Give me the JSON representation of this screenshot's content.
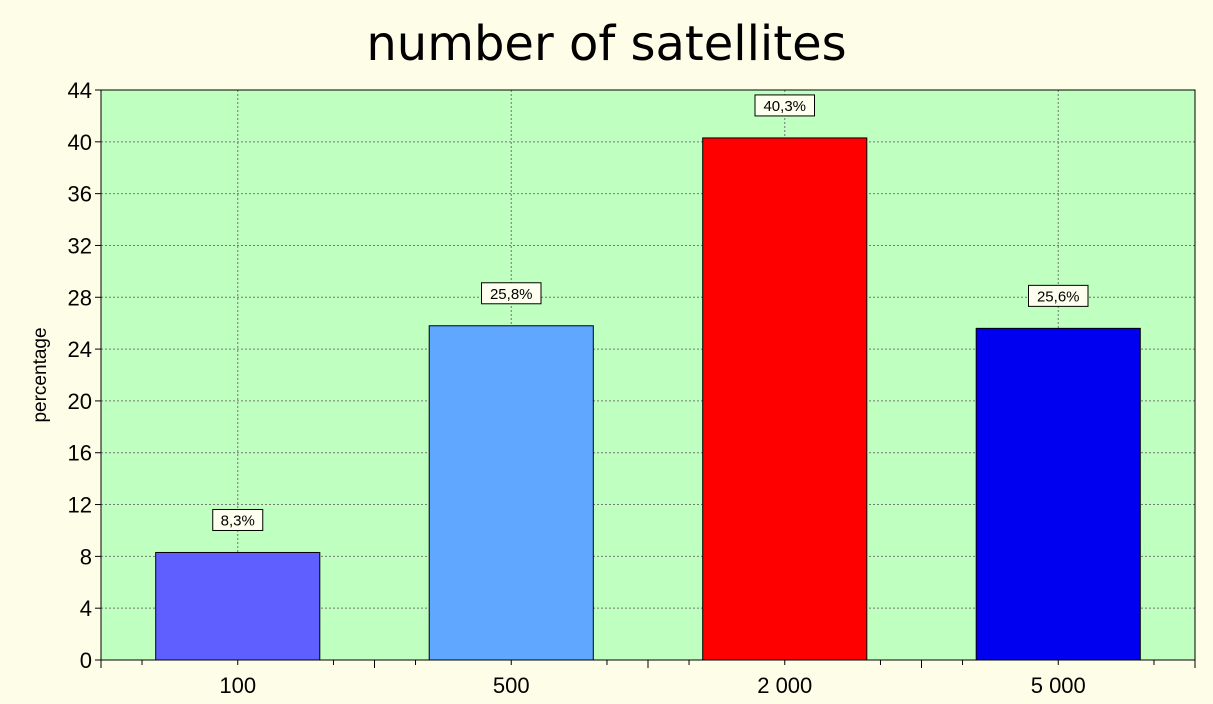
{
  "chart_data": {
    "type": "bar",
    "title": "number of satellites",
    "xlabel": "",
    "ylabel": "percentage",
    "categories": [
      "100",
      "500",
      "2 000",
      "5 000"
    ],
    "values": [
      8.3,
      25.8,
      40.3,
      25.6
    ],
    "value_labels": [
      "8,3%",
      "25,8%",
      "40,3%",
      "25,6%"
    ],
    "bar_colors": [
      "#5f5fff",
      "#5fa7ff",
      "#ff0000",
      "#0000f0"
    ],
    "plot_background": "#bfffbf",
    "ylim": [
      0,
      44
    ],
    "yticks": [
      0,
      4,
      8,
      12,
      16,
      20,
      24,
      28,
      32,
      36,
      40,
      44
    ],
    "grid": true
  }
}
